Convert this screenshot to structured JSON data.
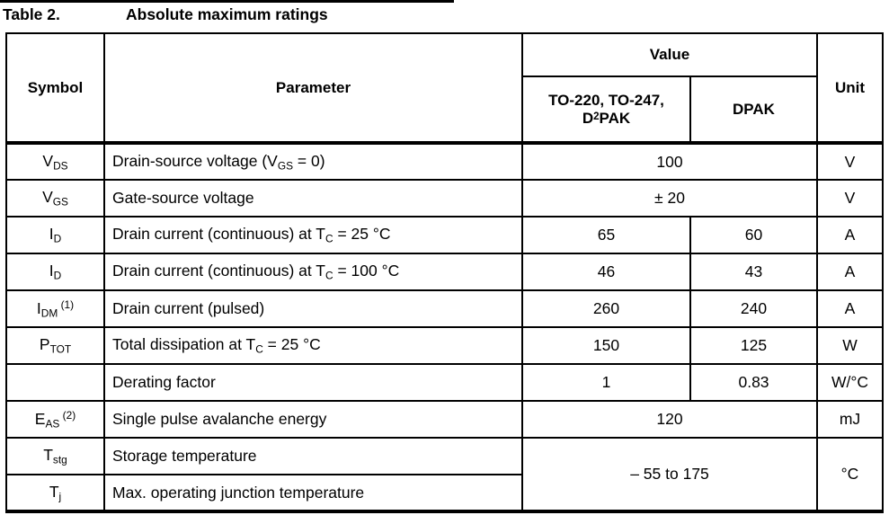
{
  "caption": {
    "label": "Table 2.",
    "title": "Absolute maximum ratings"
  },
  "table": {
    "header": {
      "symbol": "Symbol",
      "parameter": "Parameter",
      "value_group": "Value",
      "package_col1": [
        {
          "t": "TO-220, TO-247, D"
        },
        {
          "sup": "2"
        },
        {
          "t": "PAK"
        }
      ],
      "package_col2": "DPAK",
      "unit": "Unit"
    },
    "rows": [
      {
        "symbol": [
          {
            "t": "V"
          },
          {
            "sub": "DS"
          }
        ],
        "parameter": [
          {
            "t": "Drain-source voltage (V"
          },
          {
            "sub": "GS"
          },
          {
            "t": " = 0)"
          }
        ],
        "value_span": "100",
        "unit": "V"
      },
      {
        "symbol": [
          {
            "t": "V"
          },
          {
            "sub": "GS"
          }
        ],
        "parameter": [
          {
            "t": "Gate-source voltage"
          }
        ],
        "value_span": "± 20",
        "unit": "V"
      },
      {
        "symbol": [
          {
            "t": "I"
          },
          {
            "sub": "D"
          }
        ],
        "parameter": [
          {
            "t": "Drain current (continuous) at T"
          },
          {
            "sub": "C"
          },
          {
            "t": " = 25 °C"
          }
        ],
        "value1": "65",
        "value2": "60",
        "unit": "A"
      },
      {
        "symbol": [
          {
            "t": "I"
          },
          {
            "sub": "D"
          }
        ],
        "parameter": [
          {
            "t": "Drain current (continuous) at T"
          },
          {
            "sub": "C"
          },
          {
            "t": " = 100 °C"
          }
        ],
        "value1": "46",
        "value2": "43",
        "unit": "A"
      },
      {
        "symbol": [
          {
            "t": "I"
          },
          {
            "sub": "DM"
          },
          {
            "sup": " (1)"
          }
        ],
        "parameter": [
          {
            "t": "Drain current (pulsed)"
          }
        ],
        "value1": "260",
        "value2": "240",
        "unit": "A"
      },
      {
        "symbol": [
          {
            "t": "P"
          },
          {
            "sub": "TOT"
          }
        ],
        "parameter": [
          {
            "t": "Total dissipation at T"
          },
          {
            "sub": "C"
          },
          {
            "t": " = 25 °C"
          }
        ],
        "value1": "150",
        "value2": "125",
        "unit": "W"
      },
      {
        "symbol": [],
        "parameter": [
          {
            "t": "Derating factor"
          }
        ],
        "value1": "1",
        "value2": "0.83",
        "unit": "W/°C"
      },
      {
        "symbol": [
          {
            "t": "E"
          },
          {
            "sub": "AS"
          },
          {
            "sup": " (2)"
          }
        ],
        "parameter": [
          {
            "t": "Single pulse avalanche energy"
          }
        ],
        "value_span": "120",
        "unit": "mJ"
      },
      {
        "symbol": [
          {
            "t": "T"
          },
          {
            "sub": "stg"
          }
        ],
        "parameter": [
          {
            "t": "Storage temperature"
          }
        ],
        "value_span": "– 55 to 175",
        "unit": "°C"
      },
      {
        "symbol": [
          {
            "t": "T"
          },
          {
            "sub": "j"
          }
        ],
        "parameter": [
          {
            "t": "Max. operating junction temperature"
          }
        ]
      }
    ]
  }
}
